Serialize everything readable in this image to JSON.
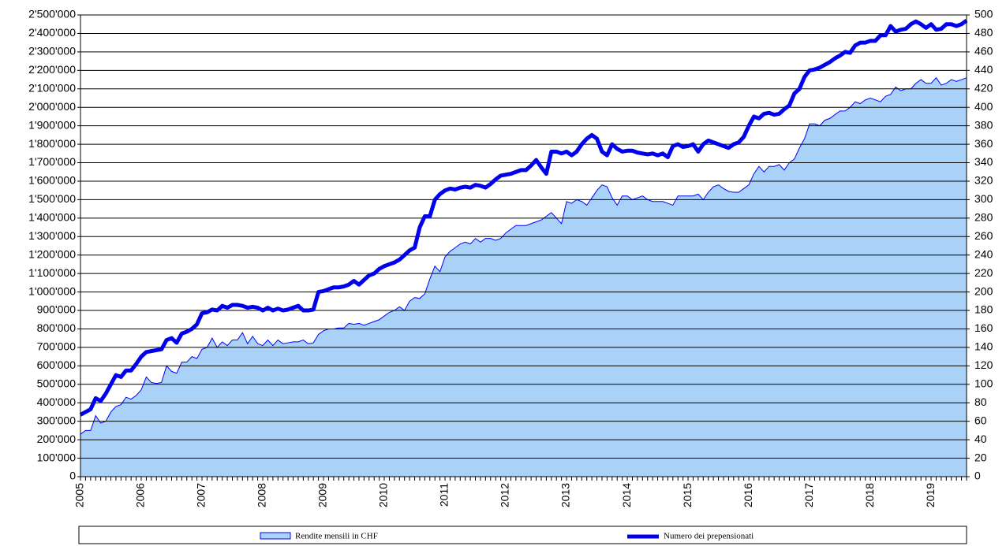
{
  "chart_data": {
    "type": "area-line",
    "categories": [
      "2005",
      null,
      null,
      null,
      null,
      null,
      null,
      null,
      null,
      null,
      null,
      null,
      "2006",
      null,
      null,
      null,
      null,
      null,
      null,
      null,
      null,
      null,
      null,
      null,
      "2007",
      null,
      null,
      null,
      null,
      null,
      null,
      null,
      null,
      null,
      null,
      null,
      "2008",
      null,
      null,
      null,
      null,
      null,
      null,
      null,
      null,
      null,
      null,
      null,
      "2009",
      null,
      null,
      null,
      null,
      null,
      null,
      null,
      null,
      null,
      null,
      null,
      "2010",
      null,
      null,
      null,
      null,
      null,
      null,
      null,
      null,
      null,
      null,
      null,
      "2011",
      null,
      null,
      null,
      null,
      null,
      null,
      null,
      null,
      null,
      null,
      null,
      "2012",
      null,
      null,
      null,
      null,
      null,
      null,
      null,
      null,
      null,
      null,
      null,
      "2013",
      null,
      null,
      null,
      null,
      null,
      null,
      null,
      null,
      null,
      null,
      null,
      "2014",
      null,
      null,
      null,
      null,
      null,
      null,
      null,
      null,
      null,
      null,
      null,
      "2015",
      null,
      null,
      null,
      null,
      null,
      null,
      null,
      null,
      null,
      null,
      null,
      "2016",
      null,
      null,
      null,
      null,
      null,
      null,
      null,
      null,
      null,
      null,
      null,
      "2017",
      null,
      null,
      null,
      null,
      null,
      null,
      null,
      null,
      null,
      null,
      null,
      "2018",
      null,
      null,
      null,
      null,
      null,
      null,
      null,
      null,
      null,
      null,
      null,
      "2019",
      null,
      null,
      null,
      null,
      null,
      null,
      null
    ],
    "series": [
      {
        "name": "Rendite mensili in CHF",
        "color": "#aad2f8",
        "values": [
          230000,
          250000,
          250000,
          330000,
          290000,
          300000,
          350000,
          380000,
          390000,
          430000,
          420000,
          440000,
          470000,
          540000,
          510000,
          505000,
          510000,
          600000,
          570000,
          560000,
          620000,
          620000,
          650000,
          640000,
          690000,
          700000,
          750000,
          700000,
          730000,
          710000,
          740000,
          740000,
          780000,
          720000,
          760000,
          720000,
          710000,
          740000,
          710000,
          740000,
          720000,
          725000,
          730000,
          730000,
          740000,
          720000,
          725000,
          770000,
          790000,
          800000,
          800000,
          805000,
          805000,
          830000,
          825000,
          830000,
          820000,
          830000,
          840000,
          850000,
          870000,
          890000,
          900000,
          920000,
          900000,
          950000,
          970000,
          965000,
          990000,
          1070000,
          1140000,
          1110000,
          1190000,
          1220000,
          1240000,
          1260000,
          1270000,
          1260000,
          1290000,
          1270000,
          1290000,
          1290000,
          1280000,
          1290000,
          1320000,
          1340000,
          1360000,
          1360000,
          1360000,
          1370000,
          1380000,
          1390000,
          1410000,
          1430000,
          1400000,
          1370000,
          1490000,
          1480000,
          1500000,
          1490000,
          1470000,
          1510000,
          1550000,
          1580000,
          1570000,
          1510000,
          1470000,
          1520000,
          1520000,
          1500000,
          1510000,
          1520000,
          1500000,
          1490000,
          1490000,
          1490000,
          1480000,
          1470000,
          1520000,
          1520000,
          1520000,
          1520000,
          1530000,
          1500000,
          1540000,
          1570000,
          1580000,
          1560000,
          1545000,
          1540000,
          1540000,
          1560000,
          1580000,
          1640000,
          1680000,
          1650000,
          1680000,
          1680000,
          1690000,
          1660000,
          1700000,
          1720000,
          1780000,
          1830000,
          1910000,
          1910000,
          1900000,
          1930000,
          1940000,
          1960000,
          1980000,
          1980000,
          2000000,
          2030000,
          2020000,
          2040000,
          2050000,
          2040000,
          2030000,
          2060000,
          2070000,
          2110000,
          2090000,
          2100000,
          2100000,
          2130000,
          2150000,
          2130000,
          2130000,
          2160000,
          2120000,
          2130000,
          2150000,
          2140000,
          2150000,
          2160000
        ]
      },
      {
        "name": "Numero dei prepensionati",
        "color": "#0000ee",
        "axis": "y2",
        "values": [
          67,
          70,
          73,
          85,
          82,
          90,
          100,
          110,
          108,
          115,
          115,
          122,
          130,
          135,
          136,
          137,
          138,
          148,
          150,
          145,
          155,
          157,
          160,
          165,
          177,
          178,
          181,
          180,
          185,
          183,
          186,
          186,
          185,
          183,
          184,
          183,
          180,
          183,
          180,
          182,
          180,
          181,
          183,
          185,
          180,
          180,
          181,
          200,
          201,
          203,
          205,
          205,
          206,
          208,
          212,
          208,
          213,
          218,
          220,
          225,
          228,
          230,
          232,
          235,
          240,
          245,
          248,
          270,
          282,
          282,
          300,
          306,
          310,
          312,
          311,
          313,
          314,
          313,
          316,
          315,
          313,
          317,
          322,
          326,
          327,
          328,
          330,
          332,
          332,
          337,
          343,
          335,
          328,
          352,
          352,
          350,
          352,
          348,
          352,
          360,
          366,
          370,
          366,
          352,
          348,
          360,
          355,
          352,
          353,
          353,
          351,
          350,
          349,
          350,
          348,
          350,
          346,
          358,
          360,
          357,
          358,
          360,
          352,
          360,
          364,
          362,
          360,
          358,
          356,
          360,
          362,
          368,
          380,
          390,
          388,
          393,
          394,
          392,
          393,
          398,
          402,
          415,
          420,
          433,
          440,
          441,
          443,
          446,
          449,
          453,
          456,
          460,
          459,
          467,
          470,
          470,
          472,
          472,
          478,
          478,
          488,
          482,
          484,
          485,
          490,
          493,
          490,
          486,
          490,
          484,
          485,
          490,
          490,
          488,
          490,
          494
        ]
      }
    ],
    "ylim": [
      0,
      2500000
    ],
    "yticks": [
      0,
      {
        "value": 100000,
        "label": "100'000"
      },
      {
        "value": 200000,
        "label": "200'000"
      },
      {
        "value": 300000,
        "label": "300'000"
      },
      {
        "value": 400000,
        "label": "400'000"
      },
      {
        "value": 500000,
        "label": "500'000"
      },
      {
        "value": 600000,
        "label": "600'000"
      },
      {
        "value": 700000,
        "label": "700'000"
      },
      {
        "value": 800000,
        "label": "800'000"
      },
      {
        "value": 900000,
        "label": "900'000"
      },
      {
        "value": 1000000,
        "label": "1'000'000"
      },
      {
        "value": 1100000,
        "label": "1'100'000"
      },
      {
        "value": 1200000,
        "label": "1'200'000"
      },
      {
        "value": 1300000,
        "label": "1'300'000"
      },
      {
        "value": 1400000,
        "label": "1'400'000"
      },
      {
        "value": 1500000,
        "label": "1'500'000"
      },
      {
        "value": 1600000,
        "label": "1'600'000"
      },
      {
        "value": 1700000,
        "label": "1'700'000"
      },
      {
        "value": 1800000,
        "label": "1'800'000"
      },
      {
        "value": 1900000,
        "label": "1'900'000"
      },
      {
        "value": 2000000,
        "label": "2'000'000"
      },
      {
        "value": 2100000,
        "label": "2'100'000"
      },
      {
        "value": 2200000,
        "label": "2'200'000"
      },
      {
        "value": 2300000,
        "label": "2'300'000"
      },
      {
        "value": 2400000,
        "label": "2'400'000"
      },
      {
        "value": 2500000,
        "label": "2'500'000"
      }
    ],
    "y2lim": [
      0,
      500
    ],
    "y2ticks": [
      0,
      20,
      40,
      60,
      80,
      100,
      120,
      140,
      160,
      180,
      200,
      220,
      240,
      260,
      280,
      300,
      320,
      340,
      360,
      380,
      400,
      420,
      440,
      460,
      480,
      500
    ],
    "grid": true,
    "legend": "bottom"
  }
}
